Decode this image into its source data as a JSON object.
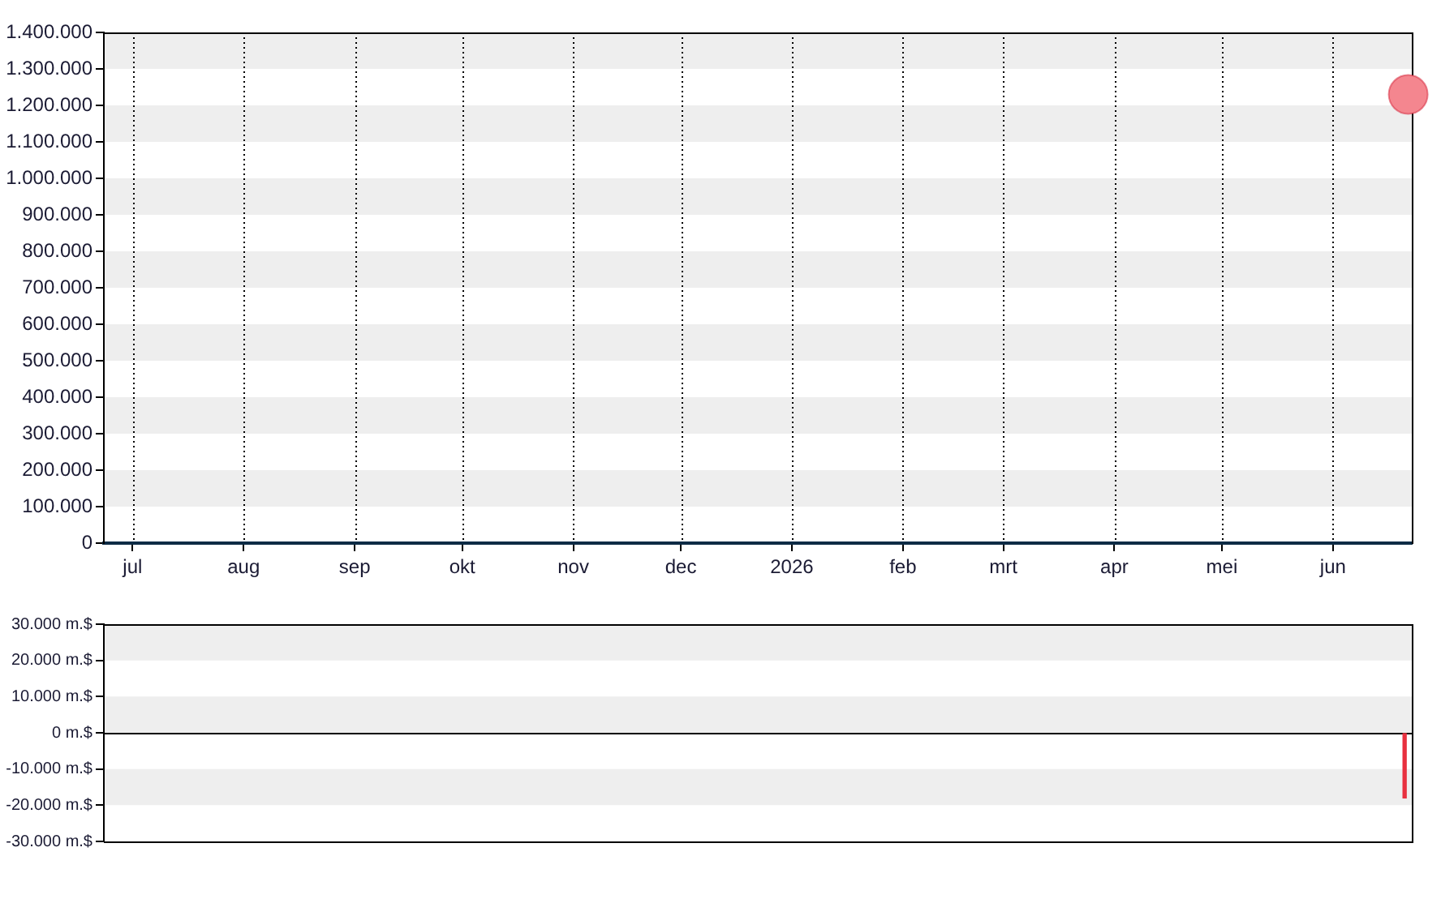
{
  "chart_data": [
    {
      "type": "scatter",
      "x": [
        "2026-06-22"
      ],
      "values": [
        1230000
      ],
      "color": "#f4868f",
      "marker": "circle",
      "xlim": [
        "2025-06-23",
        "2026-06-23"
      ],
      "xticks": [
        {
          "value": "2025-07",
          "label": "jul"
        },
        {
          "value": "2025-08",
          "label": "aug"
        },
        {
          "value": "2025-09",
          "label": "sep"
        },
        {
          "value": "2025-10",
          "label": "okt"
        },
        {
          "value": "2025-11",
          "label": "nov"
        },
        {
          "value": "2025-12",
          "label": "dec"
        },
        {
          "value": "2026-01",
          "label": "2026"
        },
        {
          "value": "2026-02",
          "label": "feb"
        },
        {
          "value": "2026-03",
          "label": "mrt"
        },
        {
          "value": "2026-04",
          "label": "apr"
        },
        {
          "value": "2026-05",
          "label": "mei"
        },
        {
          "value": "2026-06",
          "label": "jun"
        }
      ],
      "ylim": [
        0,
        1400000
      ],
      "yticks": [
        0,
        {
          "value": 100000,
          "label": "100.000"
        },
        {
          "value": 200000,
          "label": "200.000"
        },
        {
          "value": 300000,
          "label": "300.000"
        },
        {
          "value": 400000,
          "label": "400.000"
        },
        {
          "value": 500000,
          "label": "500.000"
        },
        {
          "value": 600000,
          "label": "600.000"
        },
        {
          "value": 700000,
          "label": "700.000"
        },
        {
          "value": 800000,
          "label": "800.000"
        },
        {
          "value": 900000,
          "label": "900.000"
        },
        {
          "value": 1000000,
          "label": "1.000.000"
        },
        {
          "value": 1100000,
          "label": "1.100.000"
        },
        {
          "value": 1200000,
          "label": "1.200.000"
        },
        {
          "value": 1300000,
          "label": "1.300.000"
        },
        {
          "value": 1400000,
          "label": "1.400.000"
        }
      ],
      "grid": "x",
      "bands": [
        {
          "axis": "y",
          "from": 1300000,
          "to": 1400000,
          "color": "#eeeeee"
        },
        {
          "axis": "y",
          "from": 1100000,
          "to": 1200000,
          "color": "#eeeeee"
        },
        {
          "axis": "y",
          "from": 900000,
          "to": 1000000,
          "color": "#eeeeee"
        },
        {
          "axis": "y",
          "from": 700000,
          "to": 800000,
          "color": "#eeeeee"
        },
        {
          "axis": "y",
          "from": 500000,
          "to": 600000,
          "color": "#eeeeee"
        },
        {
          "axis": "y",
          "from": 300000,
          "to": 400000,
          "color": "#eeeeee"
        },
        {
          "axis": "y",
          "from": 100000,
          "to": 200000,
          "color": "#eeeeee"
        }
      ]
    },
    {
      "type": "bar",
      "x": [
        "2026-06-21"
      ],
      "values": [
        -18000
      ],
      "color": "#e8303f",
      "xlim": [
        "2025-06-23",
        "2026-06-23"
      ],
      "ylim": [
        -30000,
        30000
      ],
      "yticks": [
        {
          "value": -30000,
          "label": "-30.000 m.$"
        },
        {
          "value": -20000,
          "label": "-20.000 m.$"
        },
        {
          "value": -10000,
          "label": "-10.000 m.$"
        },
        {
          "value": 0,
          "label": "0 m.$"
        },
        {
          "value": 10000,
          "label": "10.000 m.$"
        },
        {
          "value": 20000,
          "label": "20.000 m.$"
        },
        {
          "value": 30000,
          "label": "30.000 m.$"
        }
      ],
      "tick_labels": "y",
      "bands": [
        {
          "axis": "y",
          "from": 20000,
          "to": 30000,
          "color": "#eeeeee"
        },
        {
          "axis": "y",
          "from": 0,
          "to": 10000,
          "color": "#eeeeee"
        },
        {
          "axis": "y",
          "from": -20000,
          "to": -10000,
          "color": "#eeeeee"
        }
      ],
      "ref_lines": [
        {
          "axis": "y",
          "value": 0,
          "color": "#000000"
        }
      ]
    }
  ]
}
